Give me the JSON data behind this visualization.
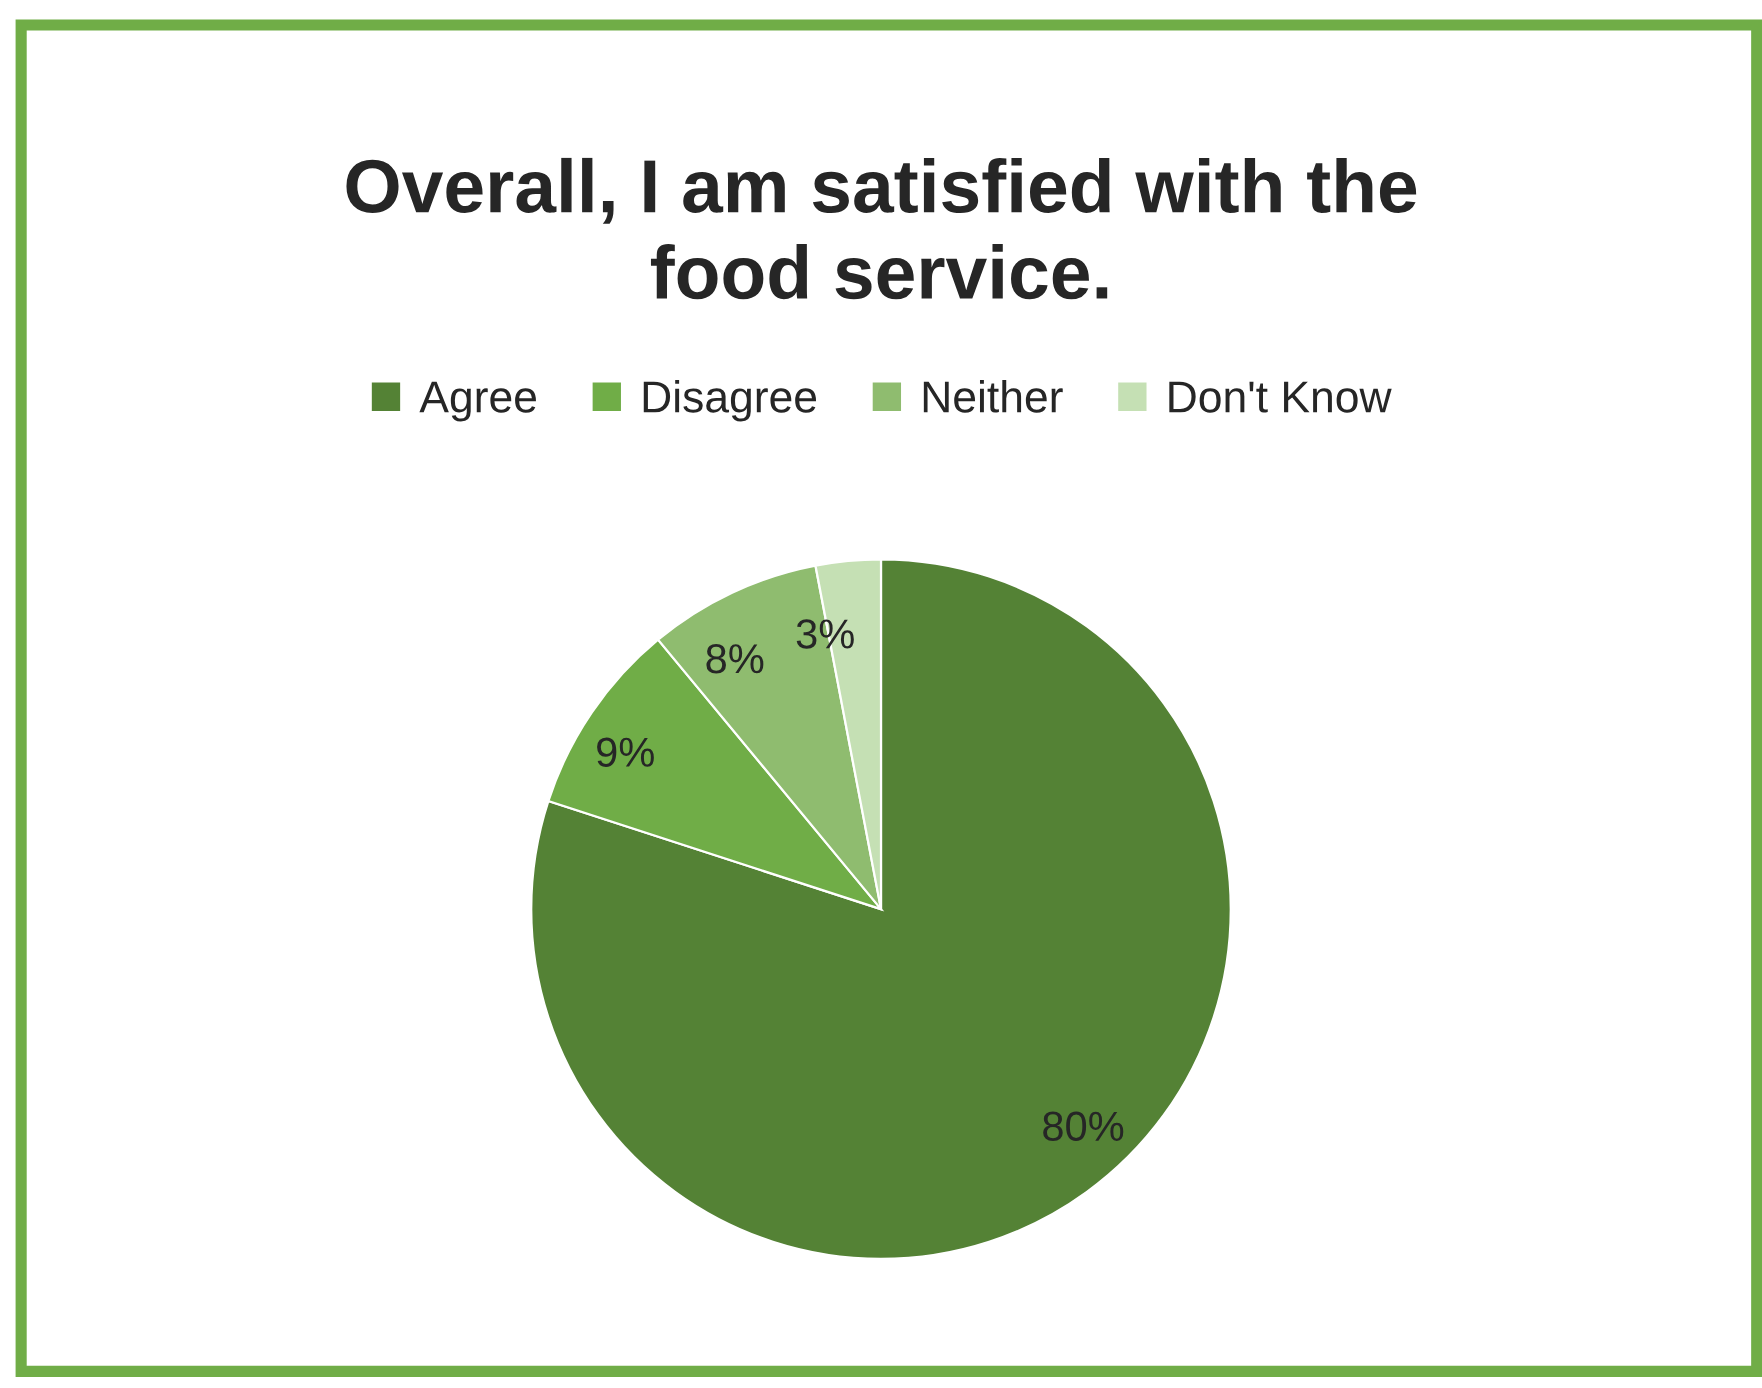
{
  "chart_data": {
    "type": "pie",
    "title": "Overall, I am satisfied with the\nfood service.",
    "categories": [
      "Agree",
      "Disagree",
      "Neither",
      "Don't Know"
    ],
    "values": [
      80,
      9,
      8,
      3
    ],
    "colors": [
      "#548235",
      "#70ad47",
      "#8fbc6f",
      "#c5e0b4"
    ],
    "value_labels": [
      "80%",
      "9%",
      "8%",
      "3%"
    ],
    "legend": "top"
  }
}
